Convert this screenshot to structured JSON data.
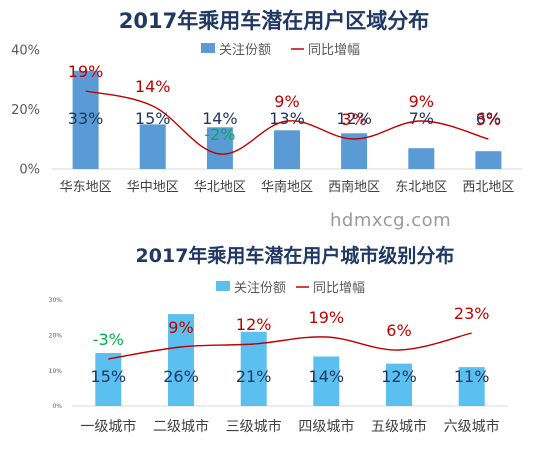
{
  "watermark": "hdmxcg.com",
  "chart_data": [
    {
      "type": "bar",
      "title": "2017年乘用车潜在用户区域分布",
      "legend": [
        "关注份额",
        "同比增幅"
      ],
      "legend_position": "top",
      "categories": [
        "华东地区",
        "华中地区",
        "华北地区",
        "华南地区",
        "西南地区",
        "东北地区",
        "西北地区"
      ],
      "series": [
        {
          "name": "关注份额",
          "type": "bar",
          "values": [
            33,
            15,
            14,
            13,
            12,
            7,
            6
          ],
          "labels": [
            "33%",
            "15%",
            "14%",
            "13%",
            "12%",
            "7%",
            "6%"
          ],
          "color": "#5b9bd5"
        },
        {
          "name": "同比增幅",
          "type": "line",
          "values": [
            19,
            14,
            -2,
            9,
            3,
            9,
            3
          ],
          "labels": [
            "19%",
            "14%",
            "-2%",
            "9%",
            "3%",
            "9%",
            "3%"
          ],
          "color": "#c00000",
          "negative_label_color": "#00b050"
        }
      ],
      "yticks": [
        "0%",
        "20%",
        "40%"
      ],
      "ylim": [
        0,
        40
      ],
      "grid": false
    },
    {
      "type": "bar",
      "title": "2017年乘用车潜在用户城市级别分布",
      "legend": [
        "关注份额",
        "同比增幅"
      ],
      "legend_position": "top",
      "categories": [
        "一级城市",
        "二级城市",
        "三级城市",
        "四级城市",
        "五级城市",
        "六级城市"
      ],
      "series": [
        {
          "name": "关注份额",
          "type": "bar",
          "values": [
            15,
            26,
            21,
            14,
            12,
            11
          ],
          "labels": [
            "15%",
            "26%",
            "21%",
            "14%",
            "12%",
            "11%"
          ],
          "color": "#5bc0f0"
        },
        {
          "name": "同比增幅",
          "type": "line",
          "values": [
            -3,
            9,
            12,
            19,
            6,
            23
          ],
          "labels": [
            "-3%",
            "9%",
            "12%",
            "19%",
            "6%",
            "23%"
          ],
          "color": "#c00000",
          "negative_label_color": "#00b050"
        }
      ],
      "yticks": [
        "0%",
        "10%",
        "20%",
        "30%"
      ],
      "ylim": [
        0,
        30
      ],
      "grid": false
    }
  ]
}
